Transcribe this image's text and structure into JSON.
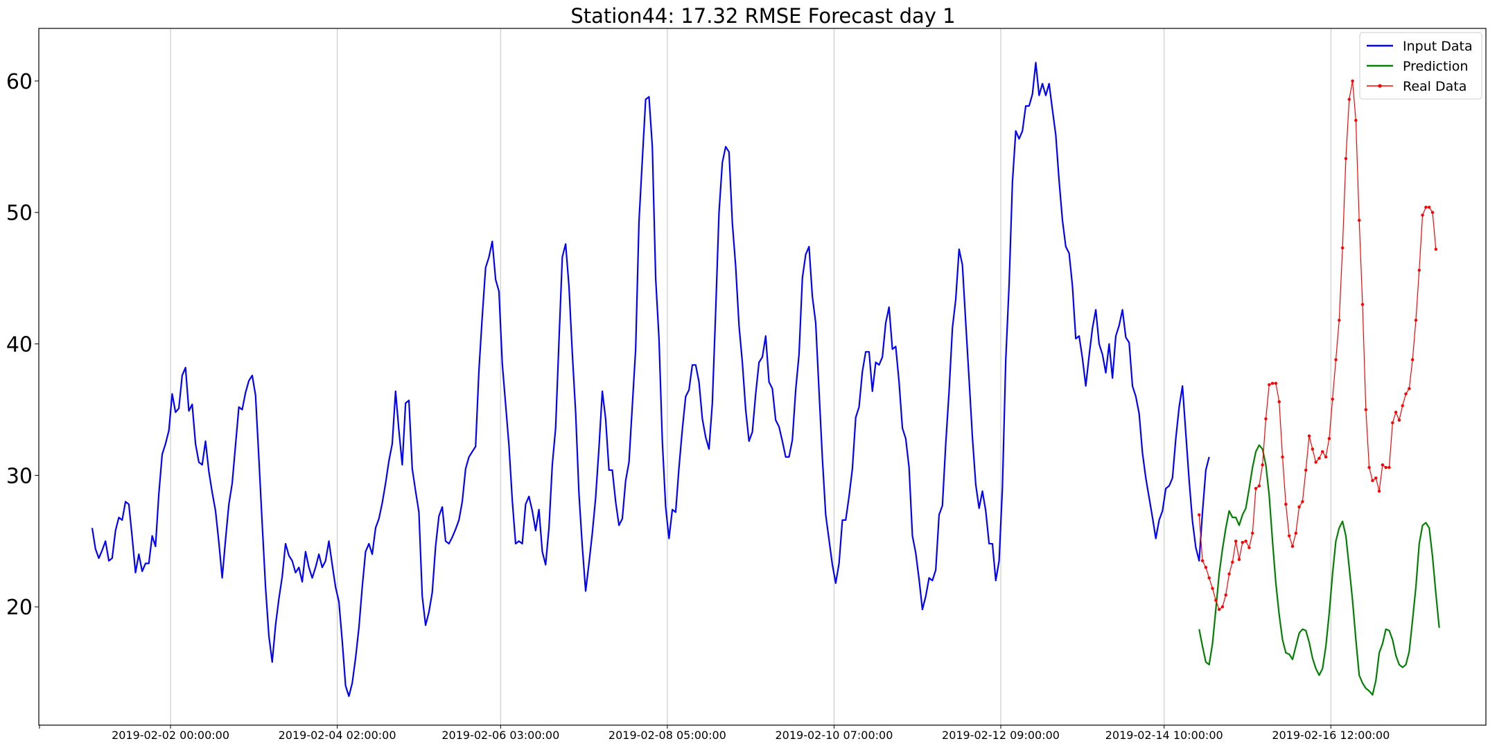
{
  "chart_data": {
    "type": "line",
    "title": "Station44: 17.32 RMSE Forecast day 1",
    "xlabel": "",
    "ylabel": "",
    "ylim": [
      11,
      64
    ],
    "yticks": [
      20,
      30,
      40,
      50,
      60
    ],
    "xticks": [
      {
        "t": 23.5,
        "label": "2019-02-02 00:00:00"
      },
      {
        "t": 73.5,
        "label": "2019-02-04 02:00:00"
      },
      {
        "t": 122.5,
        "label": "2019-02-06 03:00:00"
      },
      {
        "t": 172.5,
        "label": "2019-02-08 05:00:00"
      },
      {
        "t": 222.5,
        "label": "2019-02-10 07:00:00"
      },
      {
        "t": 272.5,
        "label": "2019-02-12 09:00:00"
      },
      {
        "t": 321.5,
        "label": "2019-02-14 10:00:00"
      },
      {
        "t": 371.5,
        "label": "2019-02-16 12:00:00"
      }
    ],
    "xlim": [
      -16,
      418
    ],
    "grid": "vertical",
    "legend_position": "top-right",
    "series": [
      {
        "name": "Input Data",
        "color": "#0000ff",
        "markers": false,
        "start": 0,
        "values": [
          26,
          24.4,
          23.7,
          24.3,
          25,
          23.5,
          23.7,
          25.8,
          26.8,
          26.6,
          28,
          27.8,
          25.3,
          22.6,
          24,
          22.7,
          23.3,
          23.3,
          25.4,
          24.6,
          28.6,
          31.6,
          32.4,
          33.4,
          36.2,
          34.8,
          35.1,
          37.6,
          38.2,
          34.9,
          35.4,
          32.4,
          31,
          30.8,
          32.6,
          30.3,
          28.7,
          27.3,
          24.9,
          22.2,
          25.1,
          27.8,
          29.4,
          32.3,
          35.2,
          35,
          36.3,
          37.2,
          37.6,
          36.1,
          31.3,
          26.3,
          21.5,
          17.8,
          15.8,
          18.6,
          20.6,
          22.3,
          24.8,
          23.9,
          23.5,
          22.6,
          23,
          21.9,
          24.2,
          23,
          22.2,
          23,
          24,
          23,
          23.5,
          25,
          23.2,
          21.5,
          20.4,
          17.4,
          14,
          13.2,
          14.2,
          16.1,
          18.4,
          21.5,
          24.2,
          24.8,
          24,
          26,
          26.7,
          27.9,
          29.4,
          31.1,
          32.4,
          36.4,
          33.4,
          30.8,
          35.5,
          35.7,
          30.5,
          28.8,
          27.2,
          20.8,
          18.6,
          19.6,
          21.1,
          24.6,
          26.9,
          27.6,
          25,
          24.8,
          25.3,
          25.9,
          26.6,
          28,
          30.5,
          31.4,
          31.8,
          32.2,
          38,
          42.1,
          45.8,
          46.6,
          47.8,
          44.9,
          44,
          38.5,
          35.4,
          32.3,
          28.1,
          24.8,
          25,
          24.8,
          27.8,
          28.4,
          27.3,
          25.8,
          27.4,
          24.2,
          23.2,
          26,
          30.8,
          33.6,
          40.2,
          46.6,
          47.6,
          44.4,
          39.3,
          34.8,
          28.6,
          24.6,
          21.2,
          23.3,
          25.6,
          28.3,
          32.1,
          36.4,
          34.3,
          30.4,
          30.4,
          28,
          26.2,
          26.7,
          29.6,
          31,
          35.3,
          39.6,
          49.3,
          54,
          58.6,
          58.8,
          55,
          45,
          40.4,
          32.6,
          27.6,
          25.2,
          27.4,
          27.2,
          30.6,
          33.5,
          36,
          36.5,
          38.4,
          38.4,
          37.1,
          34.3,
          32.9,
          32,
          35.5,
          42.5,
          50,
          53.8,
          55,
          54.6,
          49.2,
          45.9,
          41.4,
          38.6,
          35,
          32.6,
          33.3,
          36.2,
          38.6,
          39,
          40.6,
          37.1,
          36.6,
          34.2,
          33.7,
          32.6,
          31.4,
          31.4,
          32.7,
          36.5,
          39.2,
          45,
          46.8,
          47.4,
          43.6,
          41.6,
          36.4,
          31.3,
          27,
          25.1,
          23.2,
          21.8,
          23.3,
          26.6,
          26.6,
          28.4,
          30.5,
          34.4,
          35.2,
          37.9,
          39.4,
          39.4,
          36.4,
          38.6,
          38.4,
          39,
          41.6,
          42.8,
          39.6,
          39.8,
          37.1,
          33.6,
          32.8,
          30.6,
          25.4,
          24.1,
          22.1,
          19.8,
          20.8,
          22.2,
          22,
          22.8,
          27,
          27.7,
          32.4,
          36.4,
          41.2,
          43.4,
          47.2,
          46,
          41.6,
          37.3,
          32.9,
          29.3,
          27.5,
          28.8,
          27.3,
          24.8,
          24.8,
          22,
          23.5,
          29.1,
          38.8,
          44.5,
          52.3,
          56.2,
          55.6,
          56.2,
          58.1,
          58.1,
          59,
          61.4,
          58.9,
          59.8,
          58.9,
          59.8,
          57.8,
          55.9,
          52.4,
          49.4,
          47.4,
          46.9,
          44.4,
          40.4,
          40.6,
          38.9,
          36.8,
          39.1,
          41.2,
          42.6,
          40,
          39.2,
          37.8,
          40,
          37.4,
          40.6,
          41.4,
          42.6,
          40.5,
          40.1,
          36.8,
          36,
          34.7,
          31.7,
          29.8,
          28.3,
          26.8,
          25.2,
          26.6,
          27.3,
          29,
          29.2,
          29.8,
          32.8,
          35.2,
          36.8,
          33.2,
          29.6,
          26.5,
          24.5,
          23.5,
          27.2,
          30.4,
          31.4
        ]
      },
      {
        "name": "Prediction",
        "color": "#008000",
        "markers": false,
        "start": 332,
        "values": [
          18.3,
          17,
          15.8,
          15.6,
          17.2,
          19.8,
          22.5,
          24.4,
          26,
          27.3,
          26.8,
          26.8,
          26.2,
          27,
          27.5,
          29,
          30.6,
          31.8,
          32.3,
          32,
          30.8,
          28.5,
          25,
          21.8,
          19.4,
          17.5,
          16.5,
          16.4,
          16,
          17,
          18,
          18.3,
          18.2,
          17.3,
          16.1,
          15.3,
          14.8,
          15.3,
          17,
          19.5,
          22.5,
          25,
          26,
          26.5,
          25.4,
          23,
          20.5,
          17.5,
          14.8,
          14.2,
          13.8,
          13.6,
          13.3,
          14.4,
          16.5,
          17.2,
          18.3,
          18.2,
          17.5,
          16.3,
          15.6,
          15.4,
          15.6,
          16.6,
          19,
          21.5,
          24.8,
          26.2,
          26.4,
          26,
          23.8,
          21,
          18.4
        ]
      },
      {
        "name": "Real Data",
        "color": "#ff0000",
        "markers": true,
        "start": 332,
        "values": [
          27,
          23.5,
          23,
          22.2,
          21.4,
          20.5,
          19.8,
          20,
          20.9,
          22.5,
          23.4,
          25,
          23.6,
          24.9,
          25,
          24.5,
          25.6,
          29,
          29.2,
          30.8,
          34.3,
          36.9,
          37,
          37,
          35.6,
          31.4,
          27.8,
          25.4,
          24.6,
          25.6,
          27.6,
          28,
          30.4,
          33,
          32,
          31,
          31.3,
          31.8,
          31.4,
          32.8,
          35.8,
          38.8,
          41.8,
          47.3,
          54.1,
          58.6,
          60,
          57,
          49.4,
          43,
          35,
          30.6,
          29.6,
          29.8,
          28.8,
          30.8,
          30.6,
          30.6,
          34,
          34.8,
          34.2,
          35.3,
          36.2,
          36.6,
          38.8,
          41.8,
          45.6,
          49.8,
          50.4,
          50.4,
          50,
          47.2
        ]
      }
    ]
  }
}
